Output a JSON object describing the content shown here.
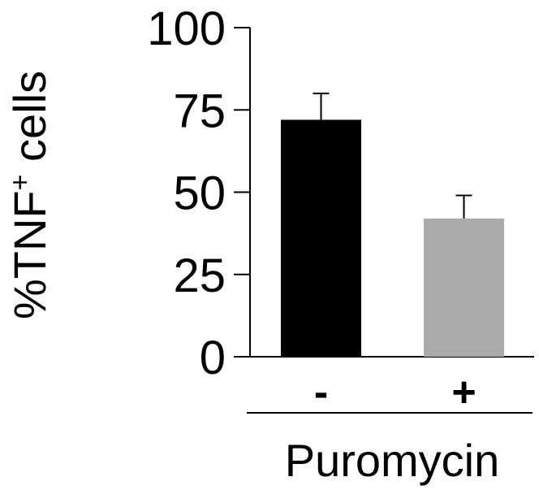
{
  "chart_data": {
    "type": "bar",
    "title": "",
    "categories": [
      "-",
      "+"
    ],
    "values": [
      72,
      42
    ],
    "errors": [
      8,
      7
    ],
    "colors": [
      "#000000",
      "#aaaaaa"
    ],
    "ylabel_main": "%TNF",
    "ylabel_sup": "+",
    "ylabel_tail": " cells",
    "xlabel": "Puromycin",
    "ylim": [
      0,
      100
    ],
    "yticks": [
      0,
      25,
      50,
      75,
      100
    ],
    "grid": false
  }
}
